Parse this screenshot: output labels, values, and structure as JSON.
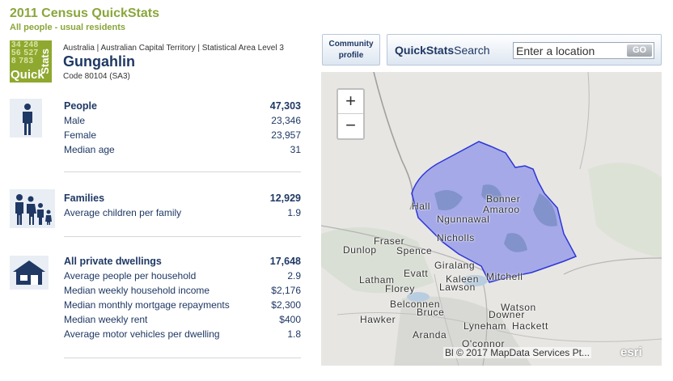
{
  "header": {
    "title": "2011 Census QuickStats",
    "subtitle": "All people - usual residents"
  },
  "logo": {
    "numbers": "34 248\n56 527\n8 783",
    "word_vertical": "Stats",
    "word_horizontal": "Quick"
  },
  "place": {
    "breadcrumb": "Australia | Australian Capital Territory | Statistical Area Level 3",
    "name": "Gungahlin",
    "code": "Code 80104 (SA3)"
  },
  "people": {
    "icon": "person-icon",
    "rows": [
      {
        "label": "People",
        "value": "47,303"
      },
      {
        "label": "Male",
        "value": "23,346"
      },
      {
        "label": "Female",
        "value": "23,957"
      },
      {
        "label": "Median age",
        "value": "31"
      }
    ]
  },
  "families": {
    "icon": "family-icon",
    "rows": [
      {
        "label": "Families",
        "value": "12,929"
      },
      {
        "label": "Average children per family",
        "value": "1.9"
      }
    ]
  },
  "dwellings": {
    "icon": "house-icon",
    "rows": [
      {
        "label": "All private dwellings",
        "value": "17,648"
      },
      {
        "label": "Average people per household",
        "value": "2.9"
      },
      {
        "label": "Median weekly household income",
        "value": "$2,176"
      },
      {
        "label": "Median monthly mortgage repayments",
        "value": "$2,300"
      },
      {
        "label": "Median weekly rent",
        "value": "$400"
      },
      {
        "label": "Average motor vehicles per dwelling",
        "value": "1.8"
      }
    ]
  },
  "toolbar": {
    "community_profile": "Community profile",
    "search_label_bold": "QuickStats",
    "search_label_rest": "Search",
    "search_value": "Enter a location",
    "go_label": "GO"
  },
  "map": {
    "zoom_in": "+",
    "zoom_out": "−",
    "attribution": "Bl © 2017 MapData Services Pt...",
    "esri": "esri",
    "labels": [
      "Hall",
      "Bonner",
      "Amaroo",
      "Ngunnawal",
      "Nicholls",
      "Fraser",
      "Dunlop",
      "Spence",
      "Giralang",
      "Evatt",
      "Latham",
      "Florey",
      "Kaleen",
      "Lawson",
      "Mitchell",
      "Belconnen",
      "Bruce",
      "Watson",
      "Downer",
      "Hawker",
      "Lyneham",
      "Hackett",
      "Aranda",
      "O'connor"
    ],
    "colors": {
      "region_fill": "#8f94ea",
      "region_stroke": "#2d36d6",
      "background": "#e7e6e3"
    }
  }
}
